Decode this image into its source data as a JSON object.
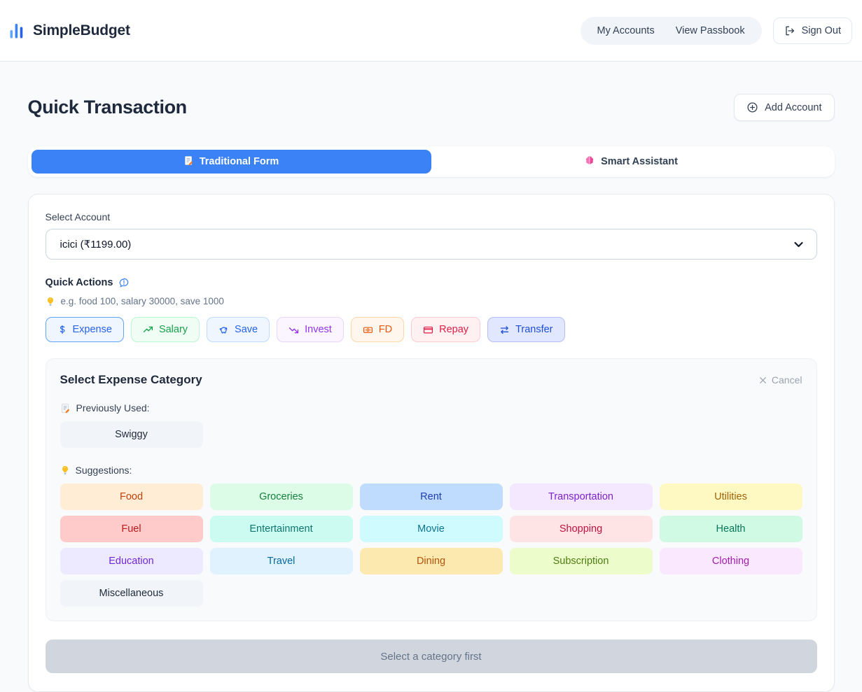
{
  "theme": {
    "primary": "#3b82f6",
    "page_bg": "#f8fafc",
    "disabled_bg": "#d1d6de"
  },
  "brand": {
    "name": "SimpleBudget",
    "logo_icon": "bar-chart-icon"
  },
  "header": {
    "nav": [
      {
        "label": "My Accounts"
      },
      {
        "label": "View Passbook"
      }
    ],
    "sign_out_label": "Sign Out"
  },
  "page": {
    "title": "Quick Transaction",
    "add_account_label": "Add Account"
  },
  "tabs": [
    {
      "label": "Traditional Form",
      "icon": "memo-icon",
      "active": true
    },
    {
      "label": "Smart Assistant",
      "icon": "brain-icon",
      "active": false
    }
  ],
  "form": {
    "account_label": "Select Account",
    "account_value": "icici (₹1199.00)",
    "quick_actions_label": "Quick Actions",
    "quick_actions_info_icon": "info-bubble-icon",
    "hint_icon": "lightbulb-icon",
    "hint": "e.g. food 100, salary 30000, save 1000",
    "actions": [
      {
        "label": "Expense",
        "icon": "dollar-icon",
        "color": "#2563eb",
        "bg": "#eff6ff",
        "border": "#60a5fa"
      },
      {
        "label": "Salary",
        "icon": "trending-up-icon",
        "color": "#16a34a",
        "bg": "#f0fdf4",
        "border": "#bbf7d0"
      },
      {
        "label": "Save",
        "icon": "piggy-bank-icon",
        "color": "#2563eb",
        "bg": "#eff6ff",
        "border": "#bfdbfe"
      },
      {
        "label": "Invest",
        "icon": "trending-down-icon",
        "color": "#9333ea",
        "bg": "#faf5ff",
        "border": "#e9d5ff"
      },
      {
        "label": "FD",
        "icon": "banknote-icon",
        "color": "#ea580c",
        "bg": "#fff7ed",
        "border": "#fed7aa"
      },
      {
        "label": "Repay",
        "icon": "credit-card-icon",
        "color": "#e11d48",
        "bg": "#fff1f2",
        "border": "#fecdd3"
      },
      {
        "label": "Transfer",
        "icon": "transfer-icon",
        "color": "#1d4ed8",
        "bg": "#e0e7ff",
        "border": "#b4c0f4"
      }
    ]
  },
  "category_panel": {
    "title": "Select Expense Category",
    "cancel_label": "Cancel",
    "previously_used_label": "Previously Used:",
    "previously_used_icon": "memo-icon",
    "previously_used": [
      {
        "label": "Swiggy",
        "bg": "#f1f5f9",
        "color": "#1e293b"
      }
    ],
    "suggestions_label": "Suggestions:",
    "suggestions_icon": "lightbulb-icon",
    "suggestions": [
      {
        "label": "Food",
        "bg": "#ffedd5",
        "color": "#c2410c"
      },
      {
        "label": "Groceries",
        "bg": "#dcfce7",
        "color": "#15803d"
      },
      {
        "label": "Rent",
        "bg": "#bfdbfe",
        "color": "#1e40af"
      },
      {
        "label": "Transportation",
        "bg": "#f3e8ff",
        "color": "#7e22ce"
      },
      {
        "label": "Utilities",
        "bg": "#fef9c3",
        "color": "#a16207"
      },
      {
        "label": "Fuel",
        "bg": "#fecaca",
        "color": "#b91c1c"
      },
      {
        "label": "Entertainment",
        "bg": "#ccfbf1",
        "color": "#0f766e"
      },
      {
        "label": "Movie",
        "bg": "#cffafe",
        "color": "#0e7490"
      },
      {
        "label": "Shopping",
        "bg": "#ffe4e6",
        "color": "#be123c"
      },
      {
        "label": "Health",
        "bg": "#d1fae5",
        "color": "#047857"
      },
      {
        "label": "Education",
        "bg": "#ede9fe",
        "color": "#6d28d9"
      },
      {
        "label": "Travel",
        "bg": "#e0f2fe",
        "color": "#0369a1"
      },
      {
        "label": "Dining",
        "bg": "#fbe9b0",
        "color": "#b45309"
      },
      {
        "label": "Subscription",
        "bg": "#ecfccb",
        "color": "#4d7c0f"
      },
      {
        "label": "Clothing",
        "bg": "#fae8ff",
        "color": "#a21caf"
      },
      {
        "label": "Miscellaneous",
        "bg": "#f1f5f9",
        "color": "#1e293b"
      }
    ]
  },
  "submit": {
    "label": "Select a category first"
  }
}
